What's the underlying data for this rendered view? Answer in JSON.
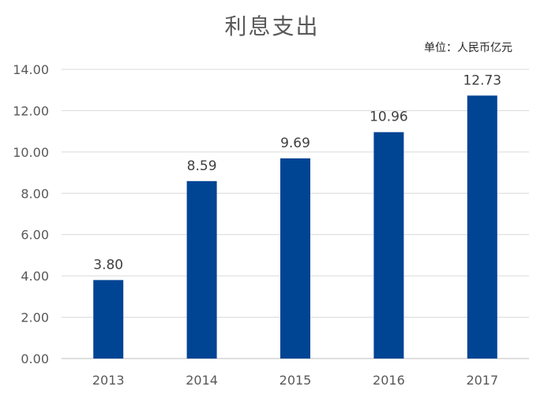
{
  "chart_data": {
    "type": "bar",
    "title": "利息支出",
    "unit": "单位：人民币亿元",
    "categories": [
      "2013",
      "2014",
      "2015",
      "2016",
      "2017"
    ],
    "values": [
      3.8,
      8.59,
      9.69,
      10.96,
      12.73
    ],
    "value_labels": [
      "3.80",
      "8.59",
      "9.69",
      "10.96",
      "12.73"
    ],
    "ylim": [
      0,
      14
    ],
    "yticks": [
      "0.00",
      "2.00",
      "4.00",
      "6.00",
      "8.00",
      "10.00",
      "12.00",
      "14.00"
    ],
    "bar_color": "#004494",
    "grid": true
  }
}
